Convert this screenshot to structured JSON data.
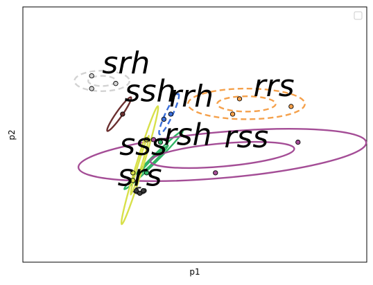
{
  "chart_data": {
    "type": "scatter",
    "title": "",
    "xlabel": "p1",
    "ylabel": "p2",
    "xlim": [
      0,
      1
    ],
    "ylim": [
      0,
      1
    ],
    "grid": false,
    "xticks": false,
    "yticks": false,
    "legend": {
      "placement": "top-right",
      "entries": []
    },
    "clusters": [
      {
        "label": "srh",
        "color": "#d3d3d3",
        "linestyle": "dashed",
        "label_at": [
          0.3,
          0.74
        ],
        "points": [
          [
            0.2,
            0.73
          ],
          [
            0.2,
            0.68
          ],
          [
            0.27,
            0.7
          ]
        ],
        "ellipses": [
          {
            "center": [
              0.23,
              0.71
            ],
            "rx": 0.08,
            "ry": 0.04,
            "angle": 0
          },
          {
            "center": [
              0.23,
              0.71
            ],
            "rx": 0.04,
            "ry": 0.02,
            "angle": 0
          }
        ]
      },
      {
        "label": "ssh",
        "color": "#6b3030",
        "linestyle": "solid",
        "label_at": [
          0.37,
          0.63
        ],
        "points": [
          [
            0.29,
            0.58
          ]
        ],
        "ellipses": [
          {
            "center": [
              0.28,
              0.58
            ],
            "rx": 0.06,
            "ry": 0.012,
            "angle": 55
          }
        ]
      },
      {
        "label": "rrh",
        "color": "#3a6ed8",
        "linestyle": "dashed",
        "label_at": [
          0.49,
          0.61
        ],
        "points": [
          [
            0.41,
            0.56
          ],
          [
            0.43,
            0.58
          ]
        ],
        "ellipses": [
          {
            "center": [
              0.425,
              0.58
            ],
            "rx": 0.065,
            "ry": 0.014,
            "angle": 65
          }
        ]
      },
      {
        "label": "rrs",
        "color": "#f5a04a",
        "linestyle": "dashed",
        "label_at": [
          0.73,
          0.65
        ],
        "points": [
          [
            0.63,
            0.64
          ],
          [
            0.61,
            0.58
          ],
          [
            0.78,
            0.61
          ]
        ],
        "ellipses": [
          {
            "center": [
              0.65,
              0.62
            ],
            "rx": 0.17,
            "ry": 0.06,
            "angle": 0
          },
          {
            "center": [
              0.65,
              0.62
            ],
            "rx": 0.085,
            "ry": 0.03,
            "angle": 0
          }
        ]
      },
      {
        "label": "rsh",
        "color": "#2fb364",
        "linestyle": "solid",
        "label_at": [
          0.48,
          0.46
        ],
        "points": [
          [
            0.4,
            0.47
          ],
          [
            0.36,
            0.35
          ]
        ],
        "ellipses": [
          {
            "center": [
              0.38,
              0.4
            ],
            "rx": 0.12,
            "ry": 0.012,
            "angle": 45
          },
          {
            "center": [
              0.38,
              0.4
            ],
            "rx": 0.06,
            "ry": 0.006,
            "angle": 45
          }
        ]
      },
      {
        "label": "rss",
        "color": "#a44d96",
        "linestyle": "solid",
        "label_at": [
          0.65,
          0.45
        ],
        "points": [
          [
            0.8,
            0.47
          ],
          [
            0.56,
            0.35
          ],
          [
            0.38,
            0.48
          ]
        ],
        "ellipses": [
          {
            "center": [
              0.58,
              0.42
            ],
            "rx": 0.42,
            "ry": 0.09,
            "angle": 5
          },
          {
            "center": [
              0.58,
              0.42
            ],
            "rx": 0.21,
            "ry": 0.045,
            "angle": 5
          }
        ]
      },
      {
        "label": "sss",
        "color": "#d8e04a",
        "linestyle": "solid",
        "label_at": [
          0.35,
          0.42
        ],
        "points": [
          [
            0.36,
            0.48
          ],
          [
            0.32,
            0.35
          ],
          [
            0.32,
            0.32
          ]
        ],
        "ellipses": [
          {
            "center": [
              0.34,
              0.38
            ],
            "rx": 0.18,
            "ry": 0.014,
            "angle": 73
          },
          {
            "center": [
              0.34,
              0.38
            ],
            "rx": 0.09,
            "ry": 0.007,
            "angle": 73
          }
        ]
      },
      {
        "label": "srs",
        "color": "#3a3a3a",
        "linestyle": "dashed",
        "label_at": [
          0.34,
          0.3
        ],
        "points": [
          [
            0.33,
            0.28
          ],
          [
            0.34,
            0.27
          ],
          [
            0.35,
            0.28
          ]
        ],
        "ellipses": [
          {
            "center": [
              0.34,
              0.28
            ],
            "rx": 0.018,
            "ry": 0.012,
            "angle": 0
          }
        ]
      }
    ]
  }
}
